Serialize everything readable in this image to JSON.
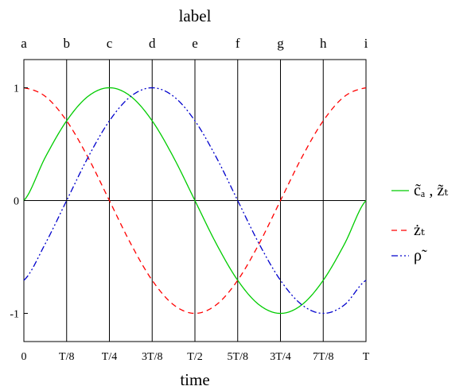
{
  "chart_data": {
    "type": "line",
    "title": "label",
    "xlabel": "time",
    "ylabel": "",
    "xlim": [
      0,
      1
    ],
    "ylim": [
      -1.25,
      1.25
    ],
    "grid": false,
    "legend_position": "right",
    "x_tick_values": [
      0,
      0.125,
      0.25,
      0.375,
      0.5,
      0.625,
      0.75,
      0.875,
      1
    ],
    "x_tick_labels": [
      "0",
      "T/8",
      "T/4",
      "3T/8",
      "T/2",
      "5T/8",
      "3T/4",
      "7T/8",
      "T"
    ],
    "top_tick_labels": [
      "a",
      "b",
      "c",
      "d",
      "e",
      "f",
      "g",
      "h",
      "i"
    ],
    "y_tick_values": [
      -1,
      0,
      1
    ],
    "y_tick_labels": [
      "-1",
      "0",
      "1"
    ],
    "x": [
      0,
      0.0625,
      0.125,
      0.1875,
      0.25,
      0.3125,
      0.375,
      0.4375,
      0.5,
      0.5625,
      0.625,
      0.6875,
      0.75,
      0.8125,
      0.875,
      0.9375,
      1
    ],
    "series": [
      {
        "name": "c̃ₐ , z̃ₜ",
        "color": "#00cc00",
        "dash": "solid",
        "values": [
          0,
          0.383,
          0.707,
          0.924,
          1,
          0.924,
          0.707,
          0.383,
          0,
          -0.383,
          -0.707,
          -0.924,
          -1,
          -0.924,
          -0.707,
          -0.383,
          0
        ]
      },
      {
        "name": "żₜ",
        "color": "#ff0000",
        "dash": "dash",
        "values": [
          1,
          0.924,
          0.707,
          0.383,
          0,
          -0.383,
          -0.707,
          -0.924,
          -1,
          -0.924,
          -0.707,
          -0.383,
          0,
          0.383,
          0.707,
          0.924,
          1
        ]
      },
      {
        "name": "ρ̃",
        "color": "#0000cc",
        "dash": "dashdotdot",
        "values": [
          -0.707,
          -0.383,
          0,
          0.383,
          0.707,
          0.924,
          1,
          0.924,
          0.707,
          0.383,
          0,
          -0.383,
          -0.707,
          -0.924,
          -1,
          -0.924,
          -0.707
        ]
      }
    ]
  }
}
